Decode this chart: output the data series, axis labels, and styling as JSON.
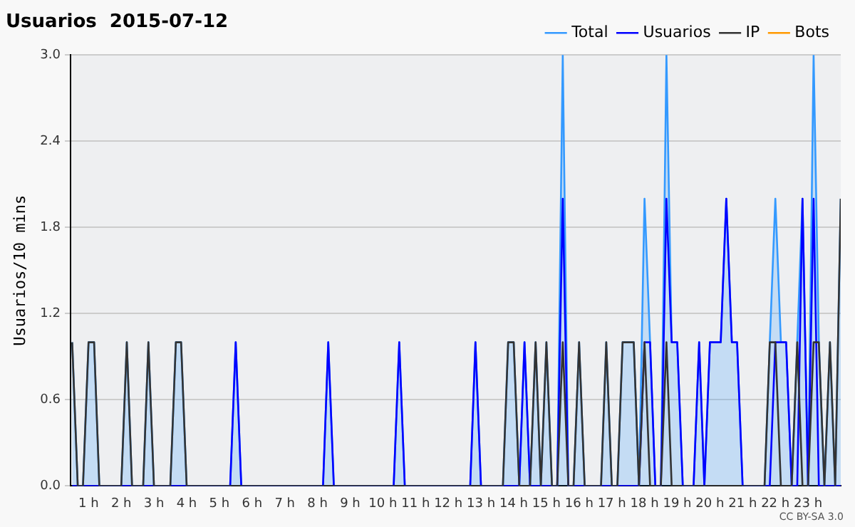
{
  "chart_data": {
    "type": "line",
    "title": "Usuarios  2015-07-12",
    "ylabel": "Usuarios/10 mins",
    "x": [
      0.5,
      0.67,
      0.83,
      1,
      1.17,
      1.33,
      1.5,
      1.67,
      1.83,
      2,
      2.17,
      2.33,
      2.5,
      2.67,
      2.83,
      3,
      3.17,
      3.33,
      3.5,
      3.67,
      3.83,
      4,
      4.17,
      4.33,
      4.5,
      4.67,
      4.83,
      5,
      5.17,
      5.33,
      5.5,
      5.67,
      5.83,
      6,
      6.17,
      6.33,
      6.5,
      6.67,
      6.83,
      7,
      7.17,
      7.33,
      7.5,
      7.67,
      7.83,
      8,
      8.17,
      8.33,
      8.5,
      8.67,
      8.83,
      9,
      9.17,
      9.33,
      9.5,
      9.67,
      9.83,
      10,
      10.17,
      10.33,
      10.5,
      10.67,
      10.83,
      11,
      11.17,
      11.33,
      11.5,
      11.67,
      11.83,
      12,
      12.17,
      12.33,
      12.5,
      12.67,
      12.83,
      13,
      13.17,
      13.33,
      13.5,
      13.67,
      13.83,
      14,
      14.17,
      14.33,
      14.5,
      14.67,
      14.83,
      15,
      15.17,
      15.33,
      15.5,
      15.67,
      15.83,
      16,
      16.17,
      16.33,
      16.5,
      16.67,
      16.83,
      17,
      17.17,
      17.33,
      17.5,
      17.67,
      17.83,
      18,
      18.17,
      18.33,
      18.5,
      18.67,
      18.83,
      19,
      19.17,
      19.33,
      19.5,
      19.67,
      19.83,
      20,
      20.17,
      20.33,
      20.5,
      20.67,
      20.83,
      21,
      21.17,
      21.33,
      21.5,
      21.67,
      21.83,
      22,
      22.17,
      22.33,
      22.5,
      22.67,
      22.83,
      23,
      23.17,
      23.33,
      23.5,
      23.67,
      23.83,
      24
    ],
    "series": [
      {
        "name": "Total",
        "type": "area",
        "color": "#3399ff",
        "values": [
          1,
          0,
          0,
          1,
          1,
          0,
          0,
          0,
          0,
          0,
          1,
          0,
          0,
          0,
          1,
          0,
          0,
          0,
          0,
          1,
          1,
          0,
          0,
          0,
          0,
          0,
          0,
          0,
          0,
          0,
          1,
          0,
          0,
          0,
          0,
          0,
          0,
          0,
          0,
          0,
          0,
          0,
          0,
          0,
          0,
          0,
          0,
          1,
          0,
          0,
          0,
          0,
          0,
          0,
          0,
          0,
          0,
          0,
          0,
          0,
          1,
          0,
          0,
          0,
          0,
          0,
          0,
          0,
          0,
          0,
          0,
          0,
          0,
          0,
          1,
          0,
          0,
          0,
          0,
          0,
          1,
          1,
          0,
          1,
          0,
          1,
          0,
          1,
          0,
          0,
          3,
          0,
          0,
          1,
          0,
          0,
          0,
          0,
          1,
          0,
          0,
          1,
          1,
          1,
          0,
          2,
          1,
          0,
          0,
          3,
          1,
          1,
          0,
          0,
          0,
          1,
          0,
          1,
          1,
          1,
          2,
          1,
          1,
          0,
          0,
          0,
          0,
          0,
          1,
          2,
          1,
          1,
          0,
          1,
          2,
          0,
          3,
          1,
          0,
          1,
          0,
          2
        ]
      },
      {
        "name": "Usuarios",
        "type": "line",
        "color": "#0000ff",
        "values": [
          0,
          0,
          0,
          0,
          0,
          0,
          0,
          0,
          0,
          0,
          0,
          0,
          0,
          0,
          0,
          0,
          0,
          0,
          0,
          0,
          0,
          0,
          0,
          0,
          0,
          0,
          0,
          0,
          0,
          0,
          1,
          0,
          0,
          0,
          0,
          0,
          0,
          0,
          0,
          0,
          0,
          0,
          0,
          0,
          0,
          0,
          0,
          1,
          0,
          0,
          0,
          0,
          0,
          0,
          0,
          0,
          0,
          0,
          0,
          0,
          1,
          0,
          0,
          0,
          0,
          0,
          0,
          0,
          0,
          0,
          0,
          0,
          0,
          0,
          1,
          0,
          0,
          0,
          0,
          0,
          0,
          0,
          0,
          1,
          0,
          0,
          0,
          0,
          0,
          0,
          2,
          0,
          0,
          0,
          0,
          0,
          0,
          0,
          0,
          0,
          0,
          0,
          0,
          0,
          0,
          1,
          1,
          0,
          0,
          2,
          1,
          1,
          0,
          0,
          0,
          1,
          0,
          1,
          1,
          1,
          2,
          1,
          1,
          0,
          0,
          0,
          0,
          0,
          0,
          1,
          1,
          1,
          0,
          0,
          2,
          0,
          2,
          0,
          0,
          0,
          0,
          0
        ]
      },
      {
        "name": "IP",
        "type": "line",
        "color": "#333333",
        "values": [
          1,
          0,
          0,
          1,
          1,
          0,
          0,
          0,
          0,
          0,
          1,
          0,
          0,
          0,
          1,
          0,
          0,
          0,
          0,
          1,
          1,
          0,
          0,
          0,
          0,
          0,
          0,
          0,
          0,
          0,
          0,
          0,
          0,
          0,
          0,
          0,
          0,
          0,
          0,
          0,
          0,
          0,
          0,
          0,
          0,
          0,
          0,
          0,
          0,
          0,
          0,
          0,
          0,
          0,
          0,
          0,
          0,
          0,
          0,
          0,
          0,
          0,
          0,
          0,
          0,
          0,
          0,
          0,
          0,
          0,
          0,
          0,
          0,
          0,
          0,
          0,
          0,
          0,
          0,
          0,
          1,
          1,
          0,
          0,
          0,
          1,
          0,
          1,
          0,
          0,
          1,
          0,
          0,
          1,
          0,
          0,
          0,
          0,
          1,
          0,
          0,
          1,
          1,
          1,
          0,
          1,
          0,
          0,
          0,
          1,
          0,
          0,
          0,
          0,
          0,
          0,
          0,
          0,
          0,
          0,
          0,
          0,
          0,
          0,
          0,
          0,
          0,
          0,
          1,
          1,
          0,
          0,
          0,
          1,
          0,
          0,
          1,
          1,
          0,
          1,
          0,
          2
        ]
      },
      {
        "name": "Bots",
        "type": "line",
        "color": "#ff9900",
        "values": [
          null,
          null,
          null,
          null,
          null,
          null,
          null,
          null,
          null,
          null,
          null,
          null,
          null,
          null,
          null,
          null,
          null,
          null,
          null,
          null,
          null,
          null,
          null,
          null,
          null,
          null,
          null,
          null,
          null,
          null,
          null,
          null,
          null,
          null,
          null,
          null,
          null,
          null,
          null,
          null,
          null,
          null,
          null,
          null,
          null,
          null,
          null,
          null,
          null,
          null,
          null,
          null,
          null,
          null,
          null,
          null,
          null,
          null,
          null,
          null,
          null,
          null,
          null,
          null,
          null,
          null,
          null,
          null,
          null,
          null,
          null,
          null,
          null,
          null,
          null,
          null,
          null,
          null,
          null,
          null,
          null,
          null,
          null,
          null,
          null,
          null,
          null,
          null,
          null,
          null,
          null,
          null,
          null,
          null,
          null,
          null,
          null,
          null,
          null,
          null,
          null,
          null,
          null,
          null,
          null,
          null,
          null,
          null,
          null,
          null,
          null,
          null,
          null,
          null,
          null,
          null,
          null,
          null,
          null,
          null,
          null,
          null,
          null,
          null,
          null,
          null,
          null,
          null,
          null,
          null,
          null,
          null,
          null,
          null,
          null,
          null,
          null,
          null,
          null,
          null,
          null,
          null
        ]
      }
    ],
    "xlim": [
      0.45,
      24
    ],
    "xticks": [
      {
        "value": 1,
        "label": "1 h"
      },
      {
        "value": 2,
        "label": "2 h"
      },
      {
        "value": 3,
        "label": "3 h"
      },
      {
        "value": 4,
        "label": "4 h"
      },
      {
        "value": 5,
        "label": "5 h"
      },
      {
        "value": 6,
        "label": "6 h"
      },
      {
        "value": 7,
        "label": "7 h"
      },
      {
        "value": 8,
        "label": "8 h"
      },
      {
        "value": 9,
        "label": "9 h"
      },
      {
        "value": 10,
        "label": "10 h"
      },
      {
        "value": 11,
        "label": "11 h"
      },
      {
        "value": 12,
        "label": "12 h"
      },
      {
        "value": 13,
        "label": "13 h"
      },
      {
        "value": 14,
        "label": "14 h"
      },
      {
        "value": 15,
        "label": "15 h"
      },
      {
        "value": 16,
        "label": "16 h"
      },
      {
        "value": 17,
        "label": "17 h"
      },
      {
        "value": 18,
        "label": "18 h"
      },
      {
        "value": 19,
        "label": "19 h"
      },
      {
        "value": 20,
        "label": "20 h"
      },
      {
        "value": 21,
        "label": "21 h"
      },
      {
        "value": 22,
        "label": "22 h"
      },
      {
        "value": 23,
        "label": "23 h"
      }
    ],
    "ylim": [
      0,
      3
    ],
    "yticks": [
      {
        "value": 0,
        "label": "0.0"
      },
      {
        "value": 0.6,
        "label": "0.6"
      },
      {
        "value": 1.2,
        "label": "1.2"
      },
      {
        "value": 1.8,
        "label": "1.8"
      },
      {
        "value": 2.4,
        "label": "2.4"
      },
      {
        "value": 3,
        "label": "3.0"
      }
    ],
    "grid": "y",
    "legend": "top right",
    "annotations": [
      "CC BY-SA 3.0"
    ]
  }
}
